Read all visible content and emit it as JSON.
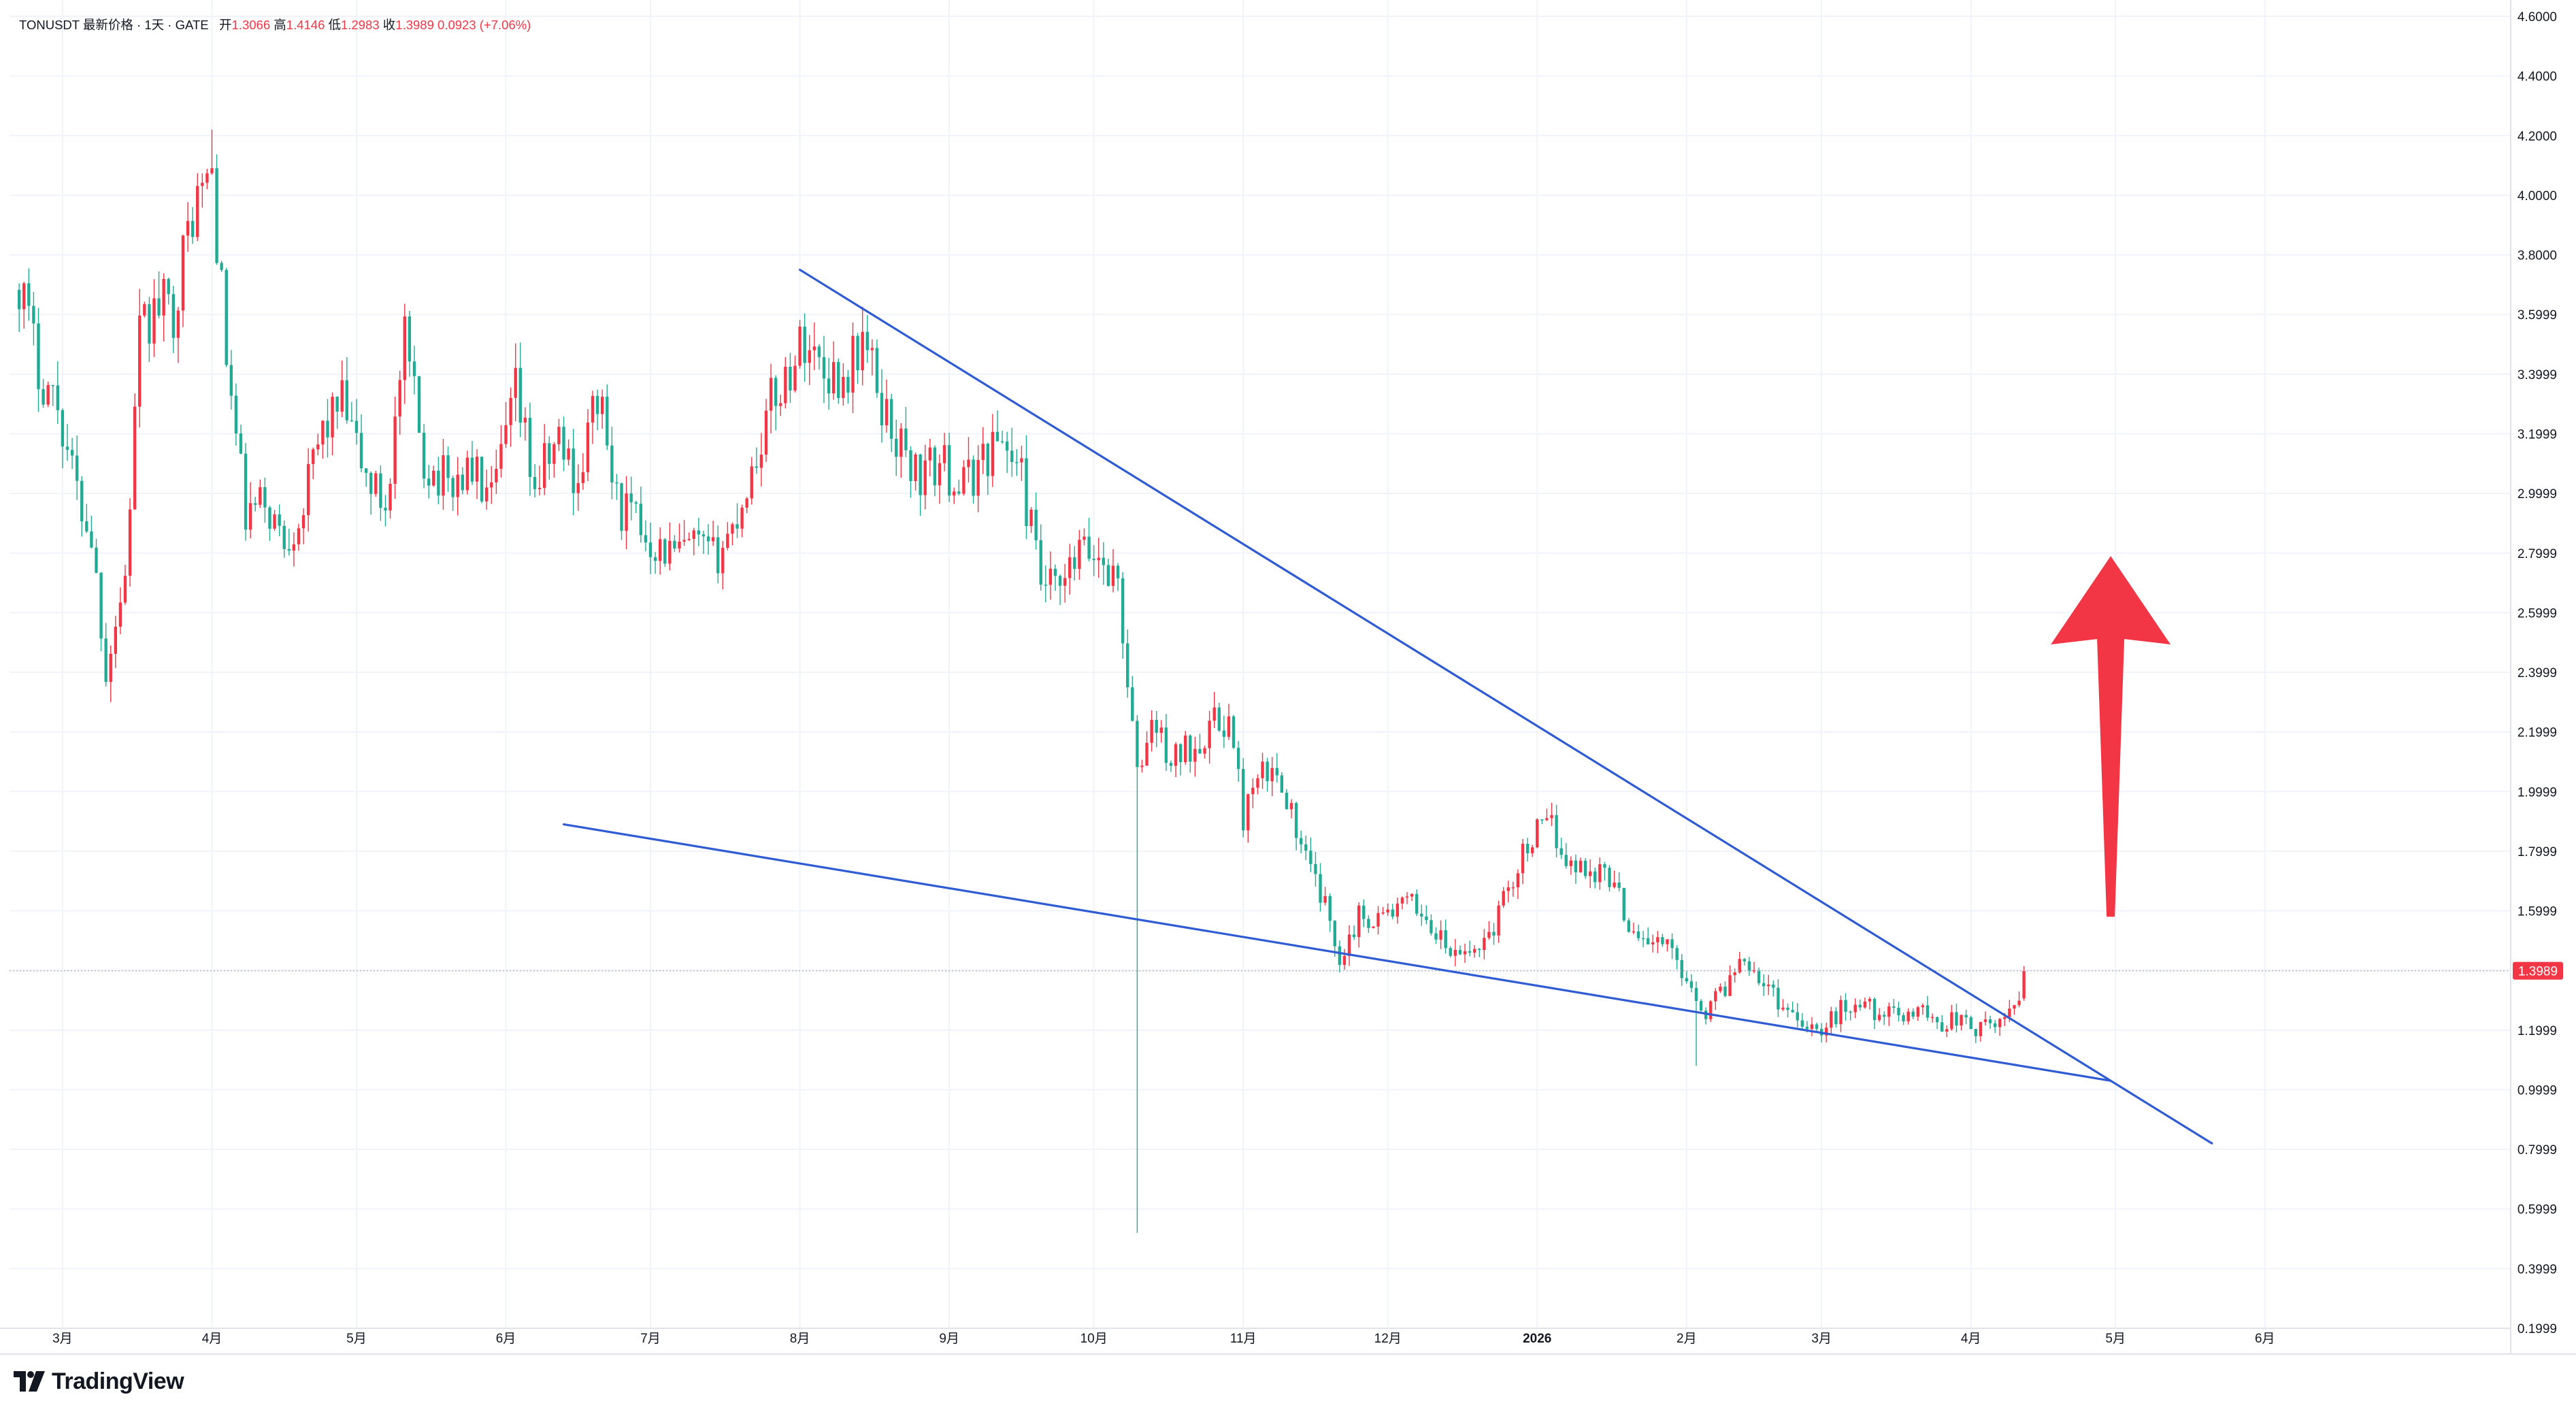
{
  "header": {
    "symbol": "TONUSDT",
    "price_type": "最新价格",
    "interval": "1天",
    "exchange": "GATE",
    "open_label": "开",
    "open": "1.3066",
    "high_label": "高",
    "high": "1.4146",
    "low_label": "低",
    "low": "1.2983",
    "close_label": "收",
    "close": "1.3989",
    "change": "0.0923",
    "change_pct": "(+7.06%)"
  },
  "branding": {
    "logo_text": "TradingView"
  },
  "colors": {
    "up": "#f23645",
    "down": "#22ab94",
    "trendline": "#2f5bd3",
    "arrow": "#f23645",
    "grid": "#f0f3fa",
    "axis_text": "#131722"
  },
  "chart_data": {
    "type": "candlestick",
    "ylim": [
      0.1999,
      4.6
    ],
    "yticks": [
      "4.6000",
      "4.4000",
      "4.2000",
      "4.0000",
      "3.8000",
      "3.5999",
      "3.3999",
      "3.1999",
      "2.9999",
      "2.7999",
      "2.5999",
      "2.3999",
      "2.1999",
      "1.9999",
      "1.7999",
      "1.5999",
      "1.3999",
      "1.1999",
      "0.9999",
      "0.7999",
      "0.5999",
      "0.3999",
      "0.1999"
    ],
    "xlim": [
      "2025-02-18",
      "2026-07-22"
    ],
    "xticks": [
      {
        "date": "2025-03-01",
        "label": "3月"
      },
      {
        "date": "2025-04-01",
        "label": "4月"
      },
      {
        "date": "2025-05-01",
        "label": "5月"
      },
      {
        "date": "2025-06-01",
        "label": "6月"
      },
      {
        "date": "2025-07-01",
        "label": "7月"
      },
      {
        "date": "2025-08-01",
        "label": "8月"
      },
      {
        "date": "2025-09-01",
        "label": "9月"
      },
      {
        "date": "2025-10-01",
        "label": "10月"
      },
      {
        "date": "2025-11-01",
        "label": "11月"
      },
      {
        "date": "2025-12-01",
        "label": "12月"
      },
      {
        "date": "2026-01-01",
        "label": "2026",
        "bold": true
      },
      {
        "date": "2026-02-01",
        "label": "2月"
      },
      {
        "date": "2026-03-01",
        "label": "3月"
      },
      {
        "date": "2026-04-01",
        "label": "4月"
      },
      {
        "date": "2026-05-01",
        "label": "5月"
      },
      {
        "date": "2026-06-01",
        "label": "6月"
      }
    ],
    "price_path": [
      [
        "2025-02-20",
        3.72
      ],
      [
        "2025-02-24",
        3.42
      ],
      [
        "2025-02-28",
        3.3
      ],
      [
        "2025-03-04",
        3.0
      ],
      [
        "2025-03-07",
        2.86
      ],
      [
        "2025-03-10",
        2.42
      ],
      [
        "2025-03-14",
        2.72
      ],
      [
        "2025-03-17",
        3.52
      ],
      [
        "2025-03-21",
        3.63
      ],
      [
        "2025-03-24",
        3.62
      ],
      [
        "2025-03-28",
        3.95
      ],
      [
        "2025-04-01",
        4.08
      ],
      [
        "2025-04-04",
        3.45
      ],
      [
        "2025-04-08",
        2.92
      ],
      [
        "2025-04-12",
        2.97
      ],
      [
        "2025-04-16",
        2.84
      ],
      [
        "2025-04-20",
        2.96
      ],
      [
        "2025-04-24",
        3.22
      ],
      [
        "2025-04-28",
        3.3
      ],
      [
        "2025-05-03",
        3.05
      ],
      [
        "2025-05-07",
        2.96
      ],
      [
        "2025-05-11",
        3.5
      ],
      [
        "2025-05-15",
        3.11
      ],
      [
        "2025-05-20",
        3.03
      ],
      [
        "2025-05-25",
        3.08
      ],
      [
        "2025-05-29",
        2.96
      ],
      [
        "2025-06-03",
        3.33
      ],
      [
        "2025-06-07",
        3.02
      ],
      [
        "2025-06-12",
        3.18
      ],
      [
        "2025-06-16",
        3.04
      ],
      [
        "2025-06-20",
        3.34
      ],
      [
        "2025-06-24",
        2.97
      ],
      [
        "2025-06-28",
        2.9
      ],
      [
        "2025-07-02",
        2.83
      ],
      [
        "2025-07-06",
        2.79
      ],
      [
        "2025-07-10",
        2.82
      ],
      [
        "2025-07-14",
        2.78
      ],
      [
        "2025-07-18",
        2.88
      ],
      [
        "2025-07-22",
        3.08
      ],
      [
        "2025-07-26",
        3.3
      ],
      [
        "2025-07-30",
        3.42
      ],
      [
        "2025-08-02",
        3.52
      ],
      [
        "2025-08-06",
        3.42
      ],
      [
        "2025-08-10",
        3.38
      ],
      [
        "2025-08-14",
        3.52
      ],
      [
        "2025-08-18",
        3.3
      ],
      [
        "2025-08-22",
        3.15
      ],
      [
        "2025-08-26",
        3.05
      ],
      [
        "2025-08-30",
        3.1
      ],
      [
        "2025-09-04",
        3.02
      ],
      [
        "2025-09-08",
        3.12
      ],
      [
        "2025-09-12",
        3.19
      ],
      [
        "2025-09-16",
        3.05
      ],
      [
        "2025-09-20",
        2.7
      ],
      [
        "2025-09-24",
        2.66
      ],
      [
        "2025-09-28",
        2.8
      ],
      [
        "2025-10-02",
        2.79
      ],
      [
        "2025-10-06",
        2.7
      ],
      [
        "2025-10-10",
        2.04
      ],
      [
        "2025-10-13",
        2.24
      ],
      [
        "2025-10-17",
        2.1
      ],
      [
        "2025-10-21",
        2.15
      ],
      [
        "2025-10-25",
        2.22
      ],
      [
        "2025-10-29",
        2.24
      ],
      [
        "2025-11-01",
        1.92
      ],
      [
        "2025-11-05",
        2.05
      ],
      [
        "2025-11-09",
        2.05
      ],
      [
        "2025-11-13",
        1.8
      ],
      [
        "2025-11-17",
        1.66
      ],
      [
        "2025-11-21",
        1.45
      ],
      [
        "2025-11-25",
        1.58
      ],
      [
        "2025-11-29",
        1.58
      ],
      [
        "2025-12-03",
        1.61
      ],
      [
        "2025-12-07",
        1.62
      ],
      [
        "2025-12-11",
        1.52
      ],
      [
        "2025-12-15",
        1.44
      ],
      [
        "2025-12-19",
        1.47
      ],
      [
        "2025-12-23",
        1.55
      ],
      [
        "2025-12-27",
        1.72
      ],
      [
        "2025-12-31",
        1.85
      ],
      [
        "2026-01-04",
        1.88
      ],
      [
        "2026-01-08",
        1.75
      ],
      [
        "2026-01-12",
        1.74
      ],
      [
        "2026-01-16",
        1.72
      ],
      [
        "2026-01-20",
        1.56
      ],
      [
        "2026-01-24",
        1.5
      ],
      [
        "2026-01-28",
        1.48
      ],
      [
        "2026-02-01",
        1.38
      ],
      [
        "2026-02-05",
        1.26
      ],
      [
        "2026-02-09",
        1.35
      ],
      [
        "2026-02-13",
        1.46
      ],
      [
        "2026-02-17",
        1.36
      ],
      [
        "2026-02-21",
        1.28
      ],
      [
        "2026-02-25",
        1.24
      ],
      [
        "2026-03-01",
        1.19
      ],
      [
        "2026-03-05",
        1.27
      ],
      [
        "2026-03-09",
        1.29
      ],
      [
        "2026-03-13",
        1.26
      ],
      [
        "2026-03-17",
        1.24
      ],
      [
        "2026-03-21",
        1.28
      ],
      [
        "2026-03-25",
        1.22
      ],
      [
        "2026-03-29",
        1.24
      ],
      [
        "2026-04-02",
        1.2
      ],
      [
        "2026-04-06",
        1.21
      ],
      [
        "2026-04-09",
        1.27
      ],
      [
        "2026-04-11",
        1.31
      ],
      [
        "2026-04-12",
        1.3989
      ]
    ],
    "notable_wicks": [
      {
        "date": "2025-03-11",
        "low": 2.3
      },
      {
        "date": "2025-04-01",
        "high": 4.22
      },
      {
        "date": "2025-10-10",
        "low": 0.52
      },
      {
        "date": "2026-02-03",
        "low": 1.08
      }
    ],
    "last_bar": {
      "date": "2026-04-12",
      "open": 1.3066,
      "high": 1.4146,
      "low": 1.2983,
      "close": 1.3989
    },
    "current_price_label": "1.3989",
    "trendlines": [
      {
        "name": "upper-resistance",
        "from": [
          "2025-08-01",
          3.75
        ],
        "to": [
          "2026-05-21",
          0.82
        ]
      },
      {
        "name": "lower-support",
        "from": [
          "2025-06-13",
          1.89
        ],
        "to": [
          "2026-04-30",
          1.03
        ]
      }
    ],
    "arrow": {
      "direction": "up",
      "date": "2026-04-30",
      "from": 1.58,
      "to": 2.79
    }
  }
}
